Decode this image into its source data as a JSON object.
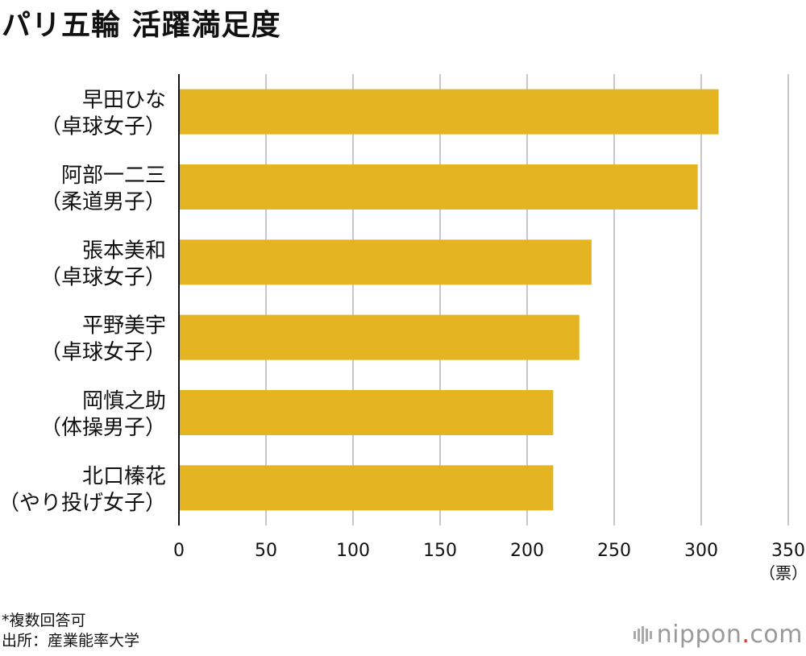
{
  "title": "パリ五輪 活躍満足度",
  "footnote_1": "*複数回答可",
  "footnote_2": "出所：産業能率大学",
  "logo": {
    "text_main": "nippon",
    "text_dot": ".",
    "text_tld": "com"
  },
  "colors": {
    "bar": "#E4B423",
    "grid": "#c8c8c8",
    "axis": "#111111"
  },
  "chart_data": {
    "type": "bar",
    "orientation": "horizontal",
    "categories": [
      [
        "早田ひな",
        "（卓球女子）"
      ],
      [
        "阿部一二三",
        "（柔道男子）"
      ],
      [
        "張本美和",
        "（卓球女子）"
      ],
      [
        "平野美宇",
        "（卓球女子）"
      ],
      [
        "岡慎之助",
        "（体操男子）"
      ],
      [
        "北口榛花",
        "（やり投げ女子）"
      ]
    ],
    "values": [
      310,
      298,
      237,
      230,
      215,
      215
    ],
    "xlim": [
      0,
      350
    ],
    "xticks": [
      0,
      50,
      100,
      150,
      200,
      250,
      300,
      350
    ],
    "unit_label": "（票）",
    "grid": true
  }
}
